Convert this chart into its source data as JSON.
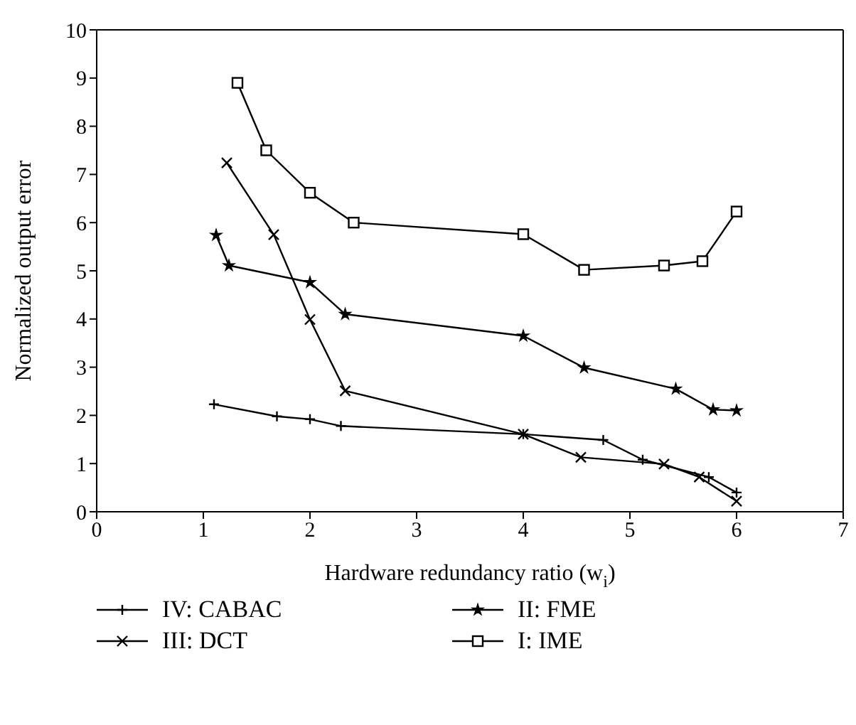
{
  "chart_data": {
    "type": "line",
    "xlabel": "Hardware redundancy ratio   (w$_{i}$)",
    "ylabel": "Normalized output error",
    "xlim": [
      0,
      7
    ],
    "xticks": [
      0,
      1,
      2,
      3,
      4,
      5,
      6,
      7
    ],
    "ylim": [
      0,
      10
    ],
    "yticks": [
      0,
      1,
      2,
      3,
      4,
      5,
      6,
      7,
      8,
      9,
      10
    ],
    "grid": false,
    "legend": "bottom",
    "line_style": "solid",
    "series": [
      {
        "name": "IV: CABAC",
        "color": "#000000",
        "marker": "cross",
        "x": [
          1.1,
          1.69,
          2.0,
          2.29,
          4.0,
          4.75,
          5.12,
          5.74,
          6.0
        ],
        "values": [
          2.23,
          1.98,
          1.92,
          1.78,
          1.61,
          1.49,
          1.08,
          0.72,
          0.4
        ]
      },
      {
        "name": "III: DCT",
        "color": "#000000",
        "marker": "x",
        "x": [
          1.22,
          1.66,
          2.0,
          2.33,
          4.0,
          4.54,
          5.32,
          5.65,
          6.0
        ],
        "values": [
          7.24,
          5.75,
          3.99,
          2.51,
          1.61,
          1.13,
          0.99,
          0.72,
          0.22
        ]
      },
      {
        "name": "II: FME",
        "color": "#000000",
        "marker": "star",
        "x": [
          1.12,
          1.24,
          2.0,
          2.33,
          4.0,
          4.57,
          5.43,
          5.78,
          6.0
        ],
        "values": [
          5.74,
          5.11,
          4.76,
          4.1,
          3.65,
          2.99,
          2.55,
          2.12,
          2.1
        ]
      },
      {
        "name": "I: IME",
        "color": "#000000",
        "marker": "square",
        "x": [
          1.32,
          1.59,
          2.0,
          2.41,
          4.0,
          4.57,
          5.32,
          5.68,
          6.0
        ],
        "values": [
          8.9,
          7.5,
          6.62,
          6.0,
          5.76,
          5.02,
          5.11,
          5.2,
          6.23
        ]
      }
    ]
  }
}
